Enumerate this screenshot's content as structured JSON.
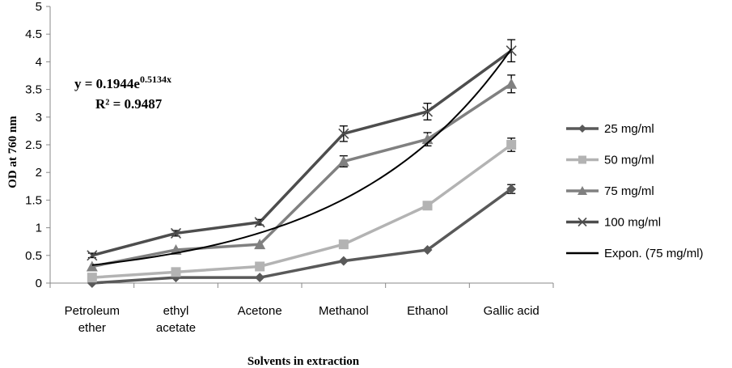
{
  "chart_data": {
    "type": "line",
    "ylabel": "OD at 760 nm",
    "xlabel": "Solvents in extraction",
    "ylim": [
      0,
      5
    ],
    "yticks": [
      "0",
      "0.5",
      "1",
      "1.5",
      "2",
      "2.5",
      "3",
      "3.5",
      "4",
      "4.5",
      "5"
    ],
    "categories": [
      [
        "Petroleum",
        "ether"
      ],
      [
        "ethyl",
        "acetate"
      ],
      [
        "Acetone"
      ],
      [
        "Methanol"
      ],
      [
        "Ethanol"
      ],
      [
        "Gallic acid"
      ]
    ],
    "series": [
      {
        "name": "25 mg/ml",
        "marker": "diamond",
        "color": "#595959",
        "values": [
          0.0,
          0.1,
          0.1,
          0.4,
          0.6,
          1.7
        ],
        "errors": [
          0,
          0,
          0,
          0,
          0,
          0.08
        ]
      },
      {
        "name": "50 mg/ml",
        "marker": "square",
        "color": "#b3b3b3",
        "values": [
          0.1,
          0.2,
          0.3,
          0.7,
          1.4,
          2.5
        ],
        "errors": [
          0,
          0,
          0,
          0,
          0,
          0.12
        ]
      },
      {
        "name": "75 mg/ml",
        "marker": "triangle",
        "color": "#808080",
        "values": [
          0.3,
          0.6,
          0.7,
          2.2,
          2.6,
          3.6
        ],
        "errors": [
          0,
          0,
          0,
          0.1,
          0.12,
          0.16
        ]
      },
      {
        "name": "100 mg/ml",
        "marker": "x",
        "color": "#4d4d4d",
        "values": [
          0.5,
          0.9,
          1.1,
          2.7,
          3.1,
          4.2
        ],
        "errors": [
          0.04,
          0.05,
          0.05,
          0.14,
          0.15,
          0.2
        ]
      }
    ],
    "trendline": {
      "name": "Expon. (75 mg/ml)",
      "color": "#000000",
      "a": 0.1944,
      "b": 0.5134,
      "equation_prefix": "y = 0.1944e",
      "equation_exponent": "0.5134x",
      "r_squared": "R² = 0.9487"
    },
    "legend": {
      "position": "right"
    }
  }
}
